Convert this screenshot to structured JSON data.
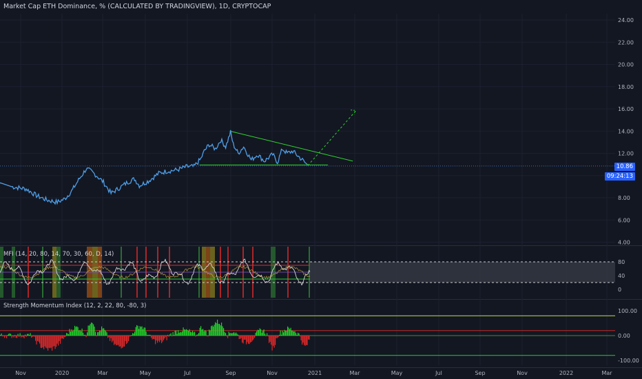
{
  "header": {
    "title": "Market Cap ETH Dominance, % (CALCULATED BY TRADINGVIEW), 1D, CRYPTOCAP"
  },
  "price_badge": {
    "value": "10.86",
    "countdown": "09:24:13"
  },
  "mfi_pane": {
    "title": "MFI (14, 20, 80, 14, 70, 30, 60, D, 14)"
  },
  "smi_pane": {
    "title": "Strength Momentum Index (12, 2, 22, 80, -80, 3)"
  },
  "colors": {
    "background": "#131722",
    "price_line": "#4f9fe8",
    "trendline": "#2fd62f",
    "mfi_line": "#d7d7d7",
    "smi_positive": "#22d12a",
    "smi_negative": "#e0292a",
    "badge": "#2962ff"
  },
  "chart_data": [
    {
      "type": "line",
      "title": "Market Cap ETH Dominance, % (CALCULATED BY TRADINGVIEW), 1D, CRYPTOCAP",
      "x_ticks": [
        "Nov",
        "2020",
        "Mar",
        "May",
        "Jul",
        "Sep",
        "Nov",
        "2021",
        "Mar",
        "May",
        "Jul",
        "Sep",
        "Nov",
        "2022",
        "Mar"
      ],
      "y_ticks": [
        "4.00",
        "6.00",
        "8.00",
        "10.00",
        "12.00",
        "14.00",
        "16.00",
        "18.00",
        "20.00",
        "22.00",
        "24.00"
      ],
      "ylim": [
        3.3,
        25.5
      ],
      "last_value": 10.86,
      "x": [
        "2019-10-01",
        "2019-10-20",
        "2019-11-10",
        "2019-11-25",
        "2019-12-10",
        "2019-12-25",
        "2020-01-05",
        "2020-01-15",
        "2020-01-25",
        "2020-02-05",
        "2020-02-12",
        "2020-02-20",
        "2020-03-01",
        "2020-03-12",
        "2020-03-22",
        "2020-04-05",
        "2020-04-15",
        "2020-04-22",
        "2020-05-05",
        "2020-05-20",
        "2020-06-01",
        "2020-06-15",
        "2020-06-30",
        "2020-07-10",
        "2020-07-20",
        "2020-07-25",
        "2020-08-01",
        "2020-08-10",
        "2020-08-18",
        "2020-08-25",
        "2020-09-01",
        "2020-09-05",
        "2020-09-12",
        "2020-09-20",
        "2020-10-01",
        "2020-10-10",
        "2020-10-20",
        "2020-11-01",
        "2020-11-08",
        "2020-11-15",
        "2020-11-22",
        "2020-11-30",
        "2020-12-07",
        "2020-12-14",
        "2020-12-22"
      ],
      "values": [
        9.4,
        9.0,
        8.8,
        8.2,
        7.8,
        7.6,
        7.9,
        8.6,
        9.6,
        10.6,
        10.4,
        10.0,
        9.4,
        8.4,
        8.8,
        9.4,
        9.7,
        9.1,
        9.5,
        10.2,
        10.4,
        10.5,
        10.8,
        10.8,
        11.5,
        12.2,
        12.8,
        12.4,
        13.2,
        12.6,
        13.9,
        12.8,
        12.0,
        12.6,
        11.4,
        11.9,
        11.3,
        11.9,
        11.2,
        12.4,
        12.0,
        12.2,
        11.8,
        11.4,
        10.9
      ]
    },
    {
      "type": "line",
      "title": "MFI (14, 20, 80, 14, 70, 30, 60, D, 14)",
      "y_ticks": [
        "0",
        "40",
        "80"
      ],
      "ylim": [
        -5,
        100
      ],
      "levels": [
        20,
        30,
        70,
        80
      ]
    },
    {
      "type": "bar",
      "title": "Strength Momentum Index (12, 2, 22, 80, -80, 3)",
      "y_ticks": [
        "100.00",
        "0.00",
        "-100.00"
      ],
      "ylim": [
        -115,
        115
      ],
      "levels": [
        80,
        20,
        0,
        -80
      ]
    }
  ]
}
